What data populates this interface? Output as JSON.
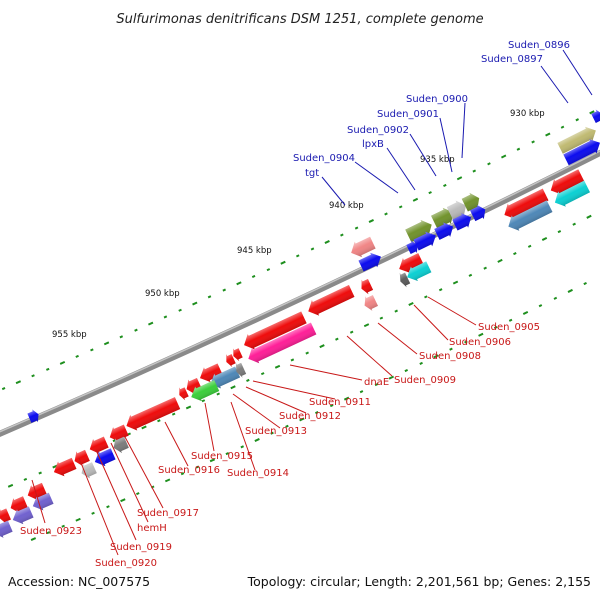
{
  "title": "Sulfurimonas denitrificans DSM 1251, complete genome",
  "footer": {
    "accession": "Accession: NC_007575",
    "topology": "Topology: circular; Length: 2,201,561 bp; Genes: 2,155"
  },
  "colors": {
    "backbone": "#8a8a8a",
    "tick": "#1e8f1e",
    "top_label": "#1a1ab0",
    "bottom_label": "#c81818"
  },
  "scale_labels": [
    "930 kbp",
    "935 kbp",
    "940 kbp",
    "945 kbp",
    "950 kbp",
    "955 kbp"
  ],
  "top_labels": [
    "Suden_0896",
    "Suden_0897",
    "Suden_0900",
    "Suden_0901",
    "Suden_0902",
    "lpxB",
    "Suden_0904",
    "tgt"
  ],
  "bottom_labels": [
    "Suden_0905",
    "Suden_0906",
    "Suden_0908",
    "Suden_0909",
    "dnaE",
    "Suden_0911",
    "Suden_0912",
    "Suden_0913",
    "Suden_0914",
    "Suden_0915",
    "Suden_0916",
    "Suden_0917",
    "hemH",
    "Suden_0919",
    "Suden_0920",
    "Suden_0923"
  ]
}
